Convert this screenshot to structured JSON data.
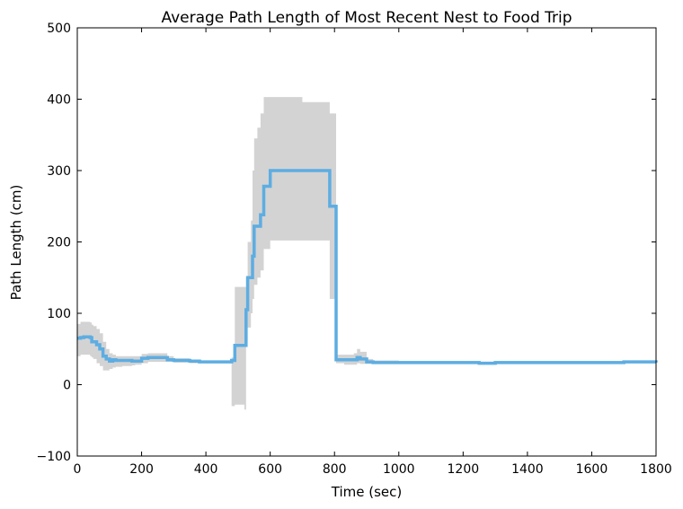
{
  "chart_data": {
    "type": "line",
    "title": "Average Path Length of Most Recent Nest to Food Trip",
    "xlabel": "Time (sec)",
    "ylabel": "Path Length (cm)",
    "xlim": [
      0,
      1800
    ],
    "ylim": [
      -100,
      500
    ],
    "xticks": [
      0,
      200,
      400,
      600,
      800,
      1000,
      1200,
      1400,
      1600,
      1800
    ],
    "yticks": [
      -100,
      0,
      100,
      200,
      300,
      400,
      500
    ],
    "grid": false,
    "line_color": "#5dade2",
    "band_color": "#d3d3d3",
    "series": [
      {
        "x": [
          0,
          10,
          20,
          30,
          40,
          45,
          50,
          60,
          70,
          80,
          90,
          100,
          110,
          120,
          140,
          170,
          180,
          200,
          220,
          270,
          280,
          300,
          350,
          380,
          400,
          450,
          480,
          490,
          520,
          525,
          530,
          540,
          545,
          550,
          560,
          570,
          580,
          600,
          700,
          780,
          785,
          800,
          805,
          830,
          860,
          870,
          880,
          900,
          920,
          1000,
          1100,
          1200,
          1250,
          1300,
          1400,
          1500,
          1600,
          1700,
          1750,
          1800
        ],
        "y": [
          65,
          66,
          67,
          67,
          66,
          60,
          60,
          56,
          50,
          40,
          36,
          33,
          35,
          34,
          34,
          33,
          33,
          37,
          38,
          38,
          35,
          34,
          33,
          32,
          32,
          32,
          34,
          55,
          55,
          105,
          150,
          150,
          180,
          222,
          222,
          238,
          278,
          300,
          300,
          300,
          250,
          250,
          35,
          35,
          35,
          38,
          36,
          32,
          31,
          31,
          31,
          31,
          30,
          31,
          31,
          31,
          31,
          32,
          32,
          31
        ],
        "lower": [
          40,
          42,
          42,
          42,
          40,
          38,
          36,
          30,
          26,
          20,
          20,
          22,
          24,
          25,
          26,
          27,
          28,
          30,
          32,
          32,
          32,
          31,
          30,
          30,
          30,
          30,
          -30,
          -28,
          -35,
          60,
          80,
          100,
          120,
          140,
          150,
          160,
          190,
          202,
          202,
          202,
          120,
          120,
          30,
          28,
          28,
          30,
          29,
          29,
          29,
          29,
          29,
          29,
          28,
          29,
          29,
          29,
          29,
          30,
          30,
          29
        ],
        "upper": [
          85,
          88,
          88,
          88,
          87,
          84,
          82,
          78,
          72,
          60,
          50,
          44,
          42,
          40,
          40,
          40,
          40,
          43,
          44,
          44,
          40,
          37,
          35,
          34,
          34,
          34,
          38,
          137,
          137,
          150,
          200,
          230,
          300,
          345,
          360,
          380,
          403,
          403,
          396,
          396,
          380,
          380,
          42,
          42,
          44,
          50,
          46,
          36,
          34,
          33,
          33,
          33,
          32,
          33,
          33,
          33,
          33,
          34,
          34,
          33
        ]
      }
    ]
  }
}
